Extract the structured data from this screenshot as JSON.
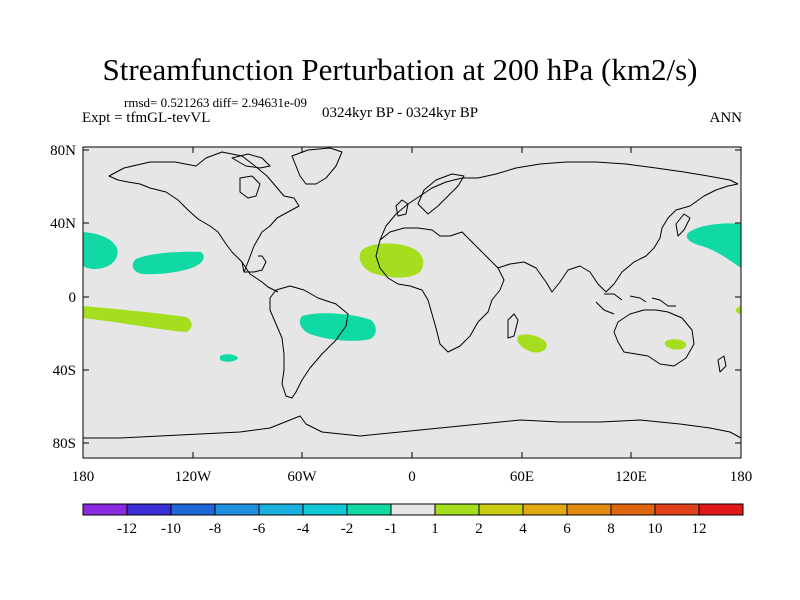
{
  "title": "Streamfunction Perturbation at 200 hPa (km2/s)",
  "stats": "rmsd= 0.521263 diff= 2.94631e-09",
  "experiment": "Expt = tfmGL-tevVL",
  "period": "0324kyr BP - 0324kyr BP",
  "season": "ANN",
  "y_tick_labels": [
    "80N",
    "40N",
    "0",
    "40S",
    "80S"
  ],
  "x_tick_labels": [
    "180",
    "120W",
    "60W",
    "0",
    "60E",
    "120E",
    "180"
  ],
  "colorbar": {
    "labels": [
      "-12",
      "-10",
      "-8",
      "-6",
      "-4",
      "-2",
      "-1",
      "1",
      "2",
      "4",
      "6",
      "8",
      "10",
      "12"
    ],
    "colors": [
      "#8a2be2",
      "#3a2fd4",
      "#1f66d8",
      "#1e90e0",
      "#19b0e0",
      "#10c9d6",
      "#10d9a6",
      "#e6e6e6",
      "#a4de1e",
      "#cccc10",
      "#e0aa10",
      "#e08a10",
      "#e0650f",
      "#e0401a",
      "#e01818"
    ]
  },
  "colors": {
    "ocean_fill": "#e6e6e6",
    "negative_anomaly": "#10d9a6",
    "positive_anomaly": "#a4de1e"
  },
  "anomaly_regions": [
    {
      "lon": -172,
      "lat": 31,
      "sign": "negative"
    },
    {
      "lon": -145,
      "lat": 25,
      "sign": "negative"
    },
    {
      "lon": -101,
      "lat": -34,
      "sign": "negative"
    },
    {
      "lon": -34,
      "lat": -14,
      "sign": "negative"
    },
    {
      "lon": 166,
      "lat": 39,
      "sign": "negative"
    },
    {
      "lon": -145,
      "lat": -13,
      "sign": "positive"
    },
    {
      "lon": -17,
      "lat": 23,
      "sign": "positive"
    },
    {
      "lon": 66,
      "lat": -24,
      "sign": "positive"
    },
    {
      "lon": 150,
      "lat": -24,
      "sign": "positive"
    }
  ]
}
